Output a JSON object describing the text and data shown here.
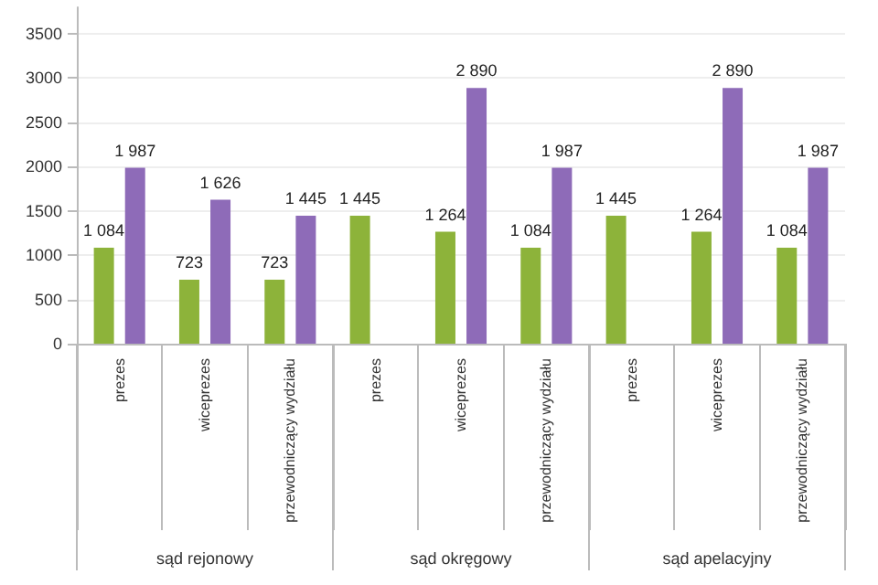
{
  "chart_data": {
    "type": "bar",
    "categories": [
      "prezes",
      "wiceprezes",
      "przewodniczący wydziału",
      "prezes",
      "wiceprezes",
      "przewodniczący wydziału",
      "prezes",
      "wiceprezes",
      "przewodniczący wydziału"
    ],
    "series": [
      {
        "color": "#8db33a",
        "values": [
          1084,
          723,
          723,
          1445,
          1264,
          1084,
          1445,
          1264,
          1084
        ],
        "value_labels": [
          "1 084",
          "723",
          "723",
          "1 445",
          "1 264",
          "1 084",
          "1 445",
          "1 264",
          "1 084"
        ]
      },
      {
        "color": "#8e6bb8",
        "values": [
          1987,
          1626,
          1445,
          null,
          2890,
          1987,
          null,
          2890,
          1987
        ],
        "value_labels": [
          "1 987",
          "1 626",
          "1 445",
          null,
          "2 890",
          "1 987",
          null,
          "2 890",
          "1 987"
        ]
      }
    ],
    "annotations": [
      "sąd rejonowy",
      "sąd okręgowy",
      "sąd apelacyjny"
    ],
    "ylim": [
      0,
      3800
    ],
    "yticks": [
      0,
      500,
      1000,
      1500,
      2000,
      2500,
      3000,
      3500
    ],
    "grid": "y"
  }
}
